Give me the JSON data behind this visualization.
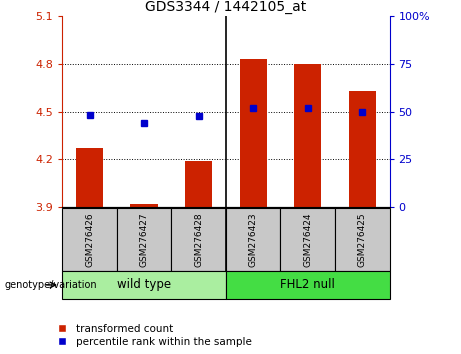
{
  "title": "GDS3344 / 1442105_at",
  "samples": [
    "GSM276426",
    "GSM276427",
    "GSM276428",
    "GSM276423",
    "GSM276424",
    "GSM276425"
  ],
  "group_labels": [
    "wild type",
    "FHL2 null"
  ],
  "red_values": [
    4.27,
    3.92,
    4.19,
    4.83,
    4.8,
    4.63
  ],
  "blue_values": [
    4.48,
    4.43,
    4.47,
    4.52,
    4.52,
    4.5
  ],
  "ylim_left": [
    3.9,
    5.1
  ],
  "ylim_right": [
    0,
    100
  ],
  "yticks_left": [
    3.9,
    4.2,
    4.5,
    4.8,
    5.1
  ],
  "yticks_right": [
    0,
    25,
    50,
    75,
    100
  ],
  "ytick_labels_left": [
    "3.9",
    "4.2",
    "4.5",
    "4.8",
    "5.1"
  ],
  "ytick_labels_right": [
    "0",
    "25",
    "50",
    "75",
    "100%"
  ],
  "bar_color": "#CC2200",
  "dot_color": "#0000CC",
  "bar_width": 0.5,
  "bg_label": "#C8C8C8",
  "bg_wildtype": "#AAEEA0",
  "bg_fhl2": "#44DD44",
  "genotype_label": "genotype/variation",
  "legend_red": "transformed count",
  "legend_blue": "percentile rank within the sample",
  "grid_lines": [
    4.2,
    4.5,
    4.8
  ],
  "wt_count": 3,
  "fhl2_count": 3
}
